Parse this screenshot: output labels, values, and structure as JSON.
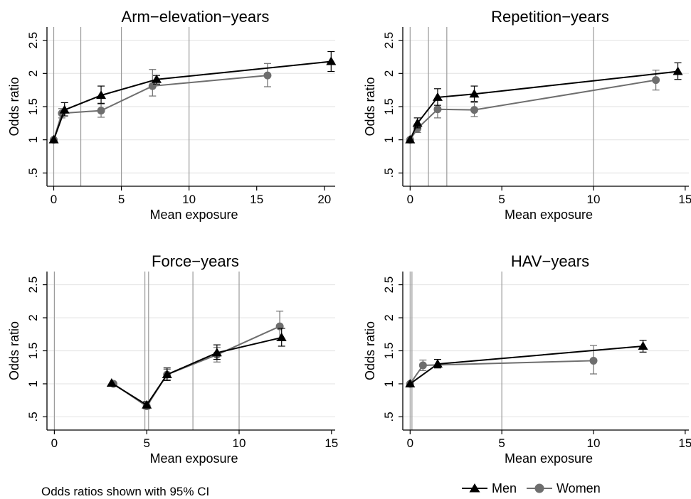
{
  "footnote": "Odds ratios shown with 95% CI",
  "legend": [
    {
      "label": "Men",
      "marker": "triangle",
      "color": "#000000"
    },
    {
      "label": "Women",
      "marker": "circle",
      "color": "#6e6e6e"
    }
  ],
  "colors": {
    "men": "#000000",
    "women": "#6e6e6e",
    "refline": "#9a9a9a",
    "grid": "#e6e6e6"
  },
  "chart_data": [
    {
      "type": "line",
      "title": "Arm−elevation−years",
      "xlabel": "Mean exposure",
      "ylabel": "Odds ratio",
      "xlim": [
        -0.5,
        20.8
      ],
      "ylim": [
        0.3,
        2.7
      ],
      "xticks": [
        0,
        5,
        10,
        15,
        20
      ],
      "yticks": [
        0.5,
        1,
        1.5,
        2,
        2.5
      ],
      "ytick_labels": [
        ".5",
        "1",
        "1.5",
        "2",
        "2.5"
      ],
      "reference_lines_x": [
        0,
        2,
        5,
        10
      ],
      "series": [
        {
          "name": "Men",
          "x": [
            0,
            0.8,
            3.5,
            7.6,
            20.5
          ],
          "y": [
            1.0,
            1.45,
            1.67,
            1.91,
            2.18
          ],
          "lo": [
            1.0,
            1.36,
            1.55,
            1.84,
            2.03
          ],
          "hi": [
            1.0,
            1.56,
            1.81,
            1.97,
            2.33
          ]
        },
        {
          "name": "Women",
          "x": [
            0,
            0.6,
            3.5,
            7.3,
            15.8
          ],
          "y": [
            1.0,
            1.4,
            1.44,
            1.81,
            1.97
          ],
          "lo": [
            1.0,
            1.33,
            1.34,
            1.66,
            1.8
          ],
          "hi": [
            1.0,
            1.47,
            1.54,
            2.06,
            2.15
          ]
        }
      ]
    },
    {
      "type": "line",
      "title": "Repetition−years",
      "xlabel": "Mean exposure",
      "ylabel": "Odds ratio",
      "xlim": [
        -0.4,
        15.2
      ],
      "ylim": [
        0.3,
        2.7
      ],
      "xticks": [
        0,
        5,
        10,
        15
      ],
      "yticks": [
        0.5,
        1,
        1.5,
        2,
        2.5
      ],
      "ytick_labels": [
        ".5",
        "1",
        "1.5",
        "2",
        "2.5"
      ],
      "reference_lines_x": [
        0,
        1,
        2,
        10
      ],
      "series": [
        {
          "name": "Men",
          "x": [
            0,
            0.4,
            1.5,
            3.5,
            14.6
          ],
          "y": [
            1.0,
            1.25,
            1.64,
            1.69,
            2.03
          ],
          "lo": [
            1.0,
            1.18,
            1.52,
            1.58,
            1.91
          ],
          "hi": [
            1.0,
            1.33,
            1.77,
            1.81,
            2.16
          ]
        },
        {
          "name": "Women",
          "x": [
            0,
            0.4,
            1.5,
            3.5,
            13.4
          ],
          "y": [
            1.0,
            1.17,
            1.46,
            1.45,
            1.9
          ],
          "lo": [
            1.0,
            1.11,
            1.33,
            1.35,
            1.75
          ],
          "hi": [
            1.0,
            1.24,
            1.49,
            1.56,
            2.05
          ]
        }
      ]
    },
    {
      "type": "line",
      "title": "Force−years",
      "xlabel": "Mean exposure",
      "ylabel": "Odds ratio",
      "xlim": [
        -0.4,
        15.2
      ],
      "ylim": [
        0.3,
        2.7
      ],
      "xticks": [
        0,
        5,
        10,
        15
      ],
      "yticks": [
        0.5,
        1,
        1.5,
        2,
        2.5
      ],
      "ytick_labels": [
        ".5",
        "1",
        "1.5",
        "2",
        "2.5"
      ],
      "reference_lines_x": [
        0,
        4.9,
        5.1,
        7.5,
        10
      ],
      "series": [
        {
          "name": "Men",
          "x": [
            3.1,
            5.0,
            6.1,
            8.8,
            12.3
          ],
          "y": [
            1.01,
            0.68,
            1.14,
            1.47,
            1.7
          ],
          "lo": [
            1.01,
            0.64,
            1.05,
            1.37,
            1.57
          ],
          "hi": [
            1.01,
            0.73,
            1.24,
            1.59,
            1.84
          ]
        },
        {
          "name": "Women",
          "x": [
            3.2,
            5.0,
            6.1,
            8.8,
            12.2
          ],
          "y": [
            1.0,
            0.66,
            1.14,
            1.44,
            1.87
          ],
          "lo": [
            1.0,
            0.62,
            1.06,
            1.33,
            1.66
          ],
          "hi": [
            1.0,
            0.71,
            1.22,
            1.55,
            2.1
          ]
        }
      ]
    },
    {
      "type": "line",
      "title": "HAV−years",
      "xlabel": "Mean exposure",
      "ylabel": "Odds ratio",
      "xlim": [
        -0.4,
        15.2
      ],
      "ylim": [
        0.3,
        2.7
      ],
      "xticks": [
        0,
        5,
        10,
        15
      ],
      "yticks": [
        0.5,
        1,
        1.5,
        2,
        2.5
      ],
      "ytick_labels": [
        ".5",
        "1",
        "1.5",
        "2",
        "2.5"
      ],
      "reference_lines_x": [
        0,
        0.1,
        5
      ],
      "series": [
        {
          "name": "Men",
          "x": [
            0,
            1.5,
            12.7
          ],
          "y": [
            1.0,
            1.3,
            1.57
          ],
          "lo": [
            1.0,
            1.24,
            1.48
          ],
          "hi": [
            1.0,
            1.37,
            1.66
          ]
        },
        {
          "name": "Women",
          "x": [
            0,
            0.7,
            10.0
          ],
          "y": [
            1.0,
            1.28,
            1.35
          ],
          "lo": [
            1.0,
            1.2,
            1.15
          ],
          "hi": [
            1.0,
            1.36,
            1.58
          ]
        }
      ]
    }
  ]
}
